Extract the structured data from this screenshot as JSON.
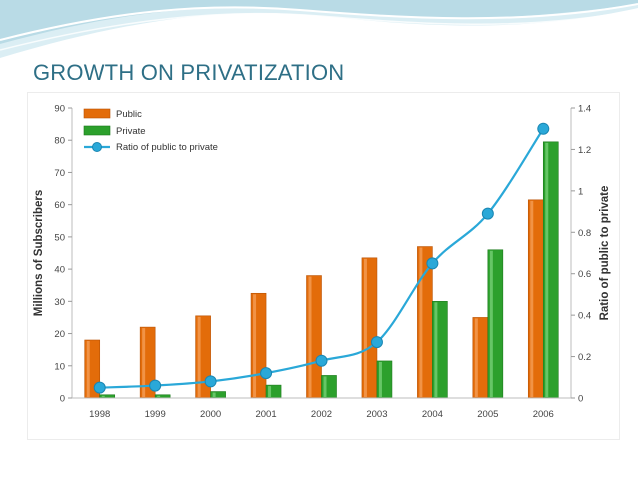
{
  "slide": {
    "title": "GROWTH ON PRIVATIZATION"
  },
  "colors": {
    "title": "#2e6f86",
    "public": "#e36c0a",
    "private": "#2ca02c",
    "ratio": "#2aa8d8",
    "axis_text": "#444444",
    "grid": "#e0e0e0"
  },
  "chart_data": {
    "type": "bar",
    "categories": [
      "1998",
      "1999",
      "2000",
      "2001",
      "2002",
      "2003",
      "2004",
      "2005",
      "2006"
    ],
    "series": [
      {
        "name": "Public",
        "axis": "left",
        "kind": "bar",
        "values": [
          18,
          22,
          25.5,
          32.5,
          38,
          43.5,
          47,
          25,
          61.5
        ]
      },
      {
        "name": "Private",
        "axis": "left",
        "kind": "bar",
        "values": [
          1,
          1,
          2,
          4,
          7,
          11.5,
          30,
          46,
          79.5
        ]
      },
      {
        "name": "Ratio of public to private",
        "axis": "right",
        "kind": "line",
        "values": [
          0.05,
          0.06,
          0.08,
          0.12,
          0.18,
          0.27,
          0.65,
          0.89,
          1.3
        ]
      }
    ],
    "ylabel": "Millions of Subscribers",
    "ylabel_right": "Ratio of public to private",
    "ylim": [
      0,
      90
    ],
    "ylim_right": [
      0,
      1.4
    ],
    "yticks": [
      0,
      10,
      20,
      30,
      40,
      50,
      60,
      70,
      80,
      90
    ],
    "yticks_right": [
      "0",
      "0.2",
      "0.4",
      "0.6",
      "0.8",
      "1",
      "1.2",
      "1.4"
    ],
    "legend_position": "top-left",
    "grid": false
  }
}
